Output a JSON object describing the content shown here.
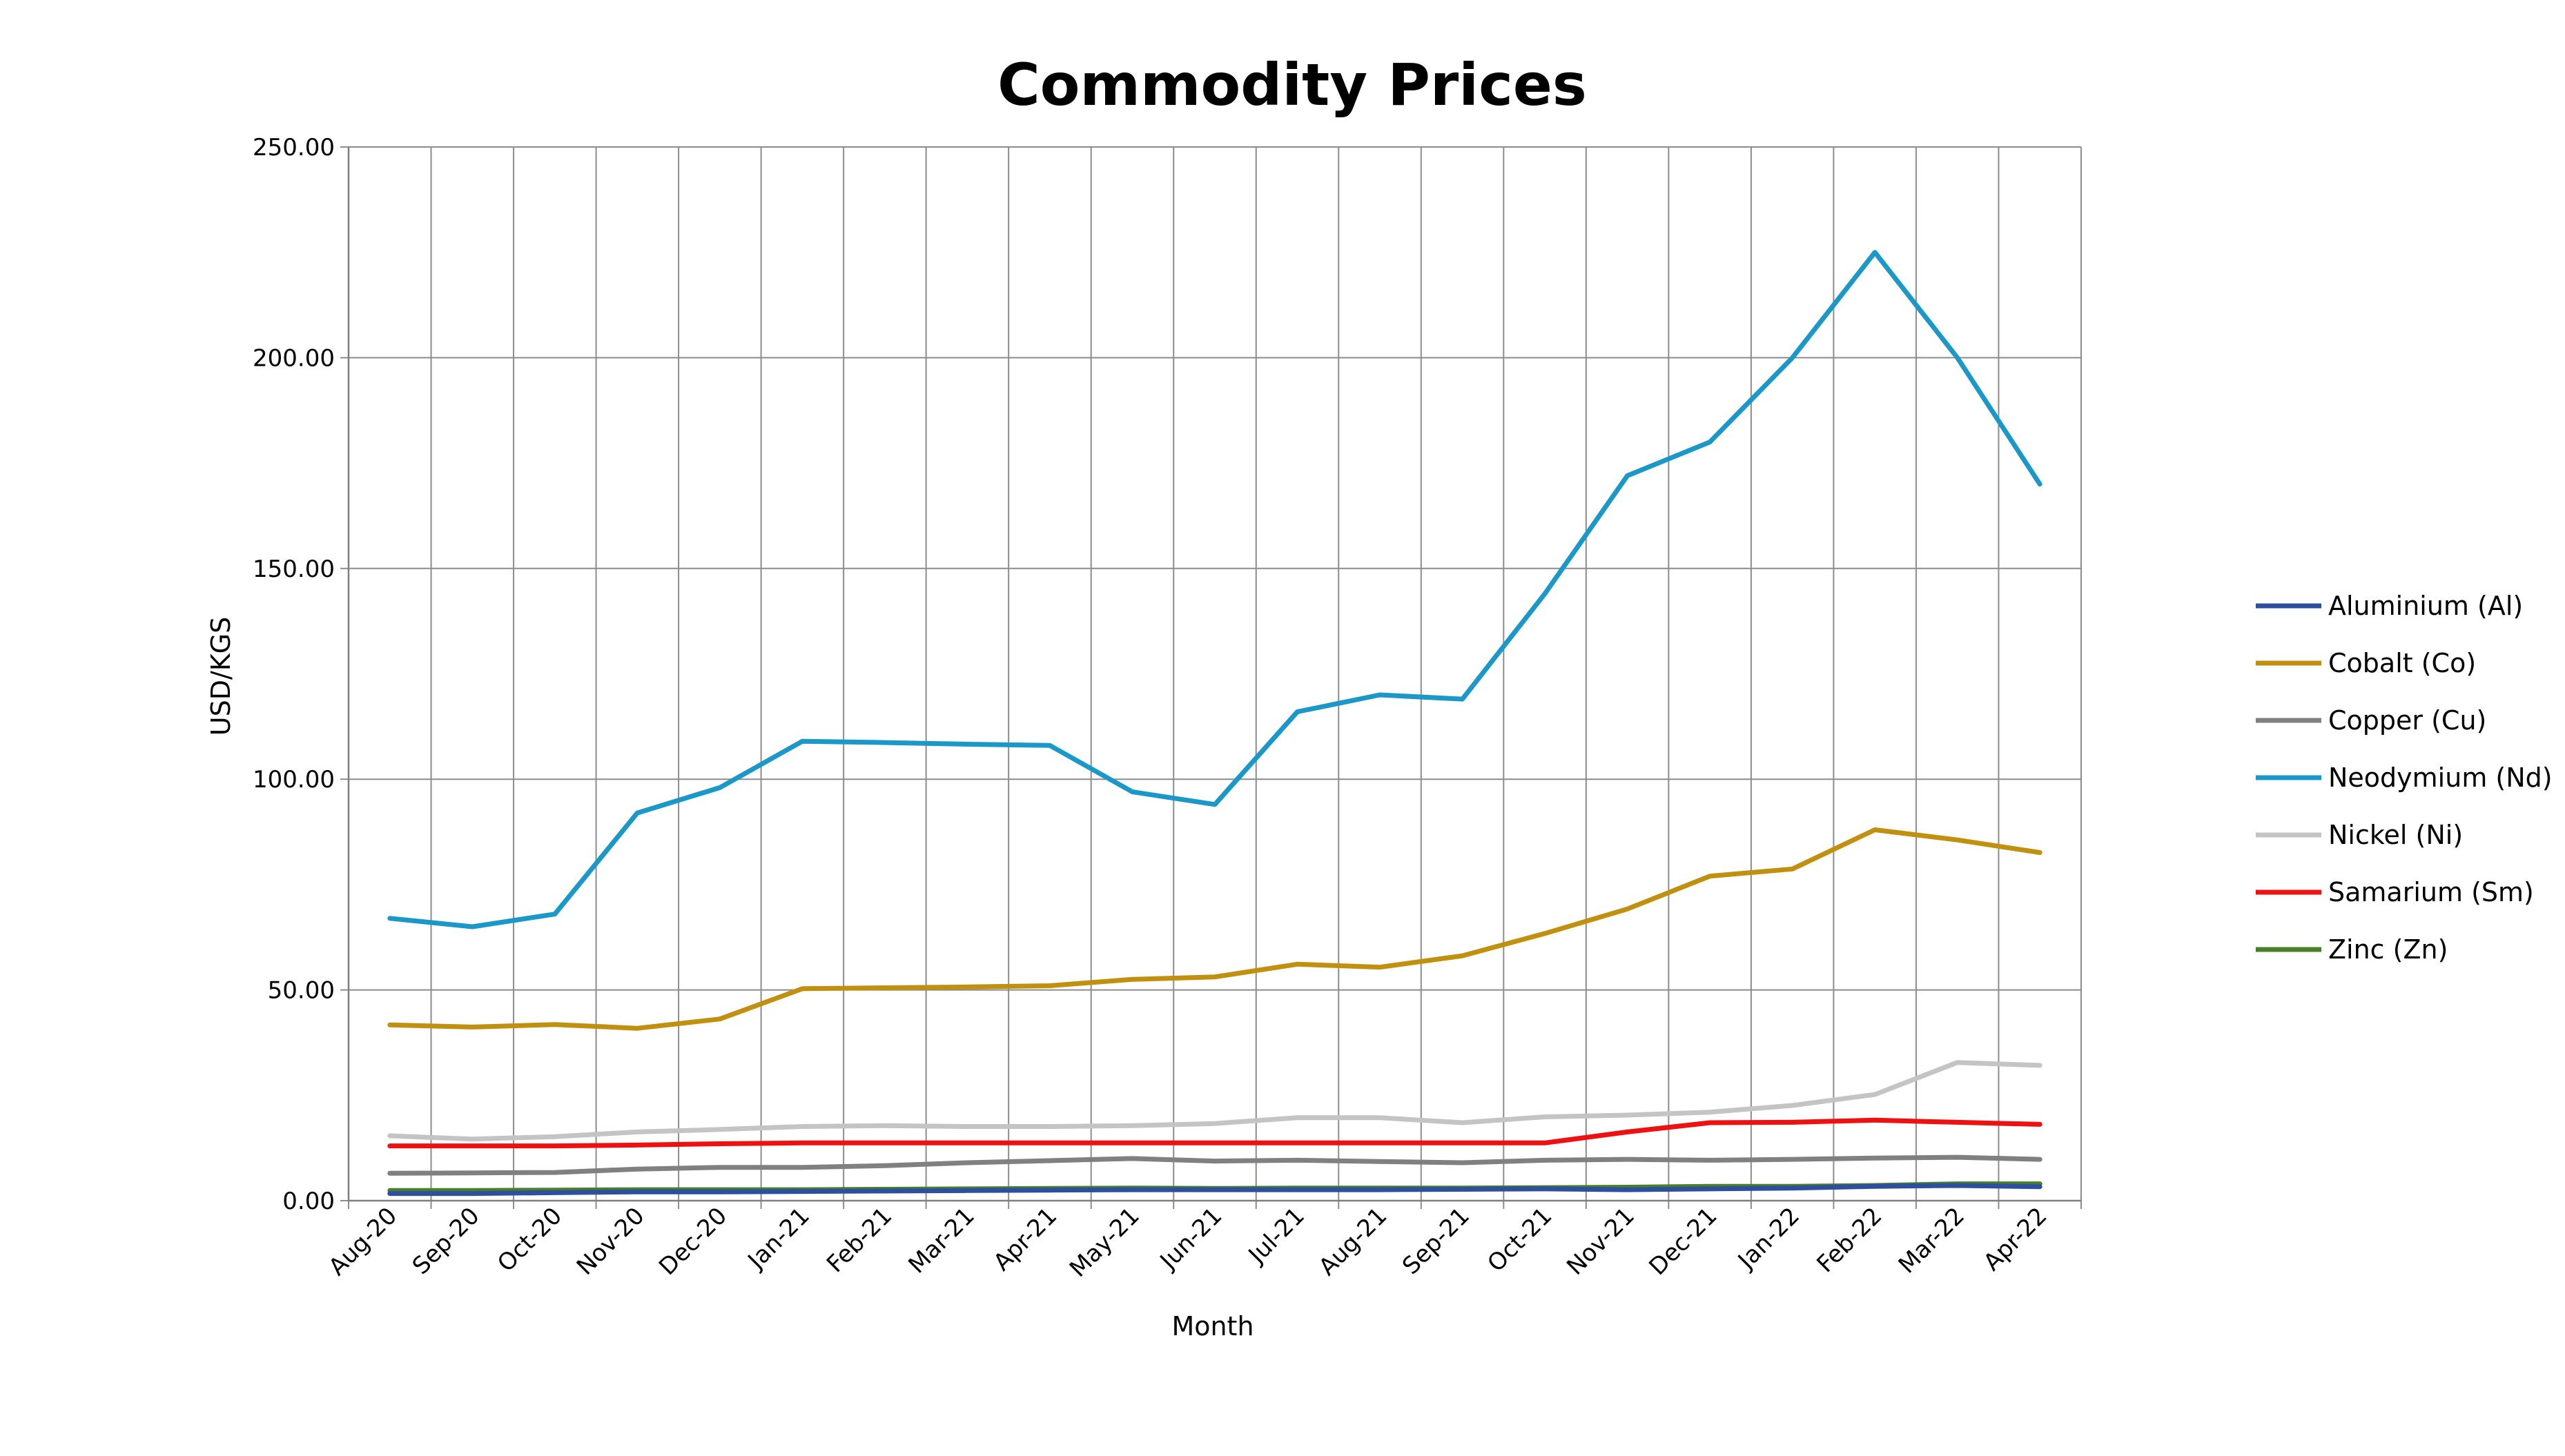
{
  "chart_data": {
    "type": "line",
    "title": "Commodity Prices",
    "xlabel": "Month",
    "ylabel": "USD/KGS",
    "ylim": [
      0,
      250
    ],
    "ytick_labels": [
      "0.00",
      "50.00",
      "100.00",
      "150.00",
      "200.00",
      "250.00"
    ],
    "grid": true,
    "legend_position": "right",
    "categories": [
      "Aug-20",
      "Sep-20",
      "Oct-20",
      "Nov-20",
      "Dec-20",
      "Jan-21",
      "Feb-21",
      "Mar-21",
      "Apr-21",
      "May-21",
      "Jun-21",
      "Jul-21",
      "Aug-21",
      "Sep-21",
      "Oct-21",
      "Nov-21",
      "Dec-21",
      "Jan-22",
      "Feb-22",
      "Mar-22",
      "Apr-22"
    ],
    "series": [
      {
        "name": "Aluminium (Al)",
        "color": "#2e4f9e",
        "values": [
          1.7,
          1.7,
          1.9,
          2.1,
          2.1,
          2.2,
          2.3,
          2.4,
          2.5,
          2.6,
          2.6,
          2.6,
          2.6,
          2.7,
          2.8,
          2.6,
          2.8,
          3.0,
          3.4,
          3.6,
          3.3
        ]
      },
      {
        "name": "Cobalt (Co)",
        "color": "#c09010",
        "values": [
          41.7,
          41.2,
          41.8,
          40.9,
          43.1,
          50.3,
          50.5,
          50.7,
          51.0,
          52.5,
          53.1,
          56.1,
          55.4,
          58.1,
          63.4,
          69.2,
          77.0,
          78.7,
          88.0,
          85.6,
          82.6
        ]
      },
      {
        "name": "Copper (Cu)",
        "color": "#808080",
        "values": [
          6.5,
          6.6,
          6.7,
          7.5,
          7.9,
          7.9,
          8.3,
          9.0,
          9.5,
          10.0,
          9.4,
          9.6,
          9.3,
          9.0,
          9.6,
          9.8,
          9.6,
          9.8,
          10.1,
          10.3,
          9.8
        ]
      },
      {
        "name": "Neodymium (Nd)",
        "color": "#1b98c8",
        "values": [
          67,
          65,
          68,
          92,
          98,
          109,
          108.7,
          108.3,
          108,
          97,
          94,
          116,
          120,
          119,
          144,
          172,
          180,
          200,
          225,
          200,
          170
        ]
      },
      {
        "name": "Nickel (Ni)",
        "color": "#c4c4c4",
        "values": [
          15.4,
          14.6,
          15.2,
          16.3,
          16.9,
          17.6,
          17.8,
          17.6,
          17.6,
          17.8,
          18.3,
          19.7,
          19.7,
          18.5,
          19.9,
          20.3,
          21.0,
          22.6,
          25.2,
          32.8,
          32.1
        ]
      },
      {
        "name": "Samarium (Sm)",
        "color": "#ee1111",
        "values": [
          13,
          13,
          13,
          13.2,
          13.5,
          13.7,
          13.7,
          13.7,
          13.7,
          13.7,
          13.7,
          13.7,
          13.7,
          13.7,
          13.7,
          16.3,
          18.5,
          18.6,
          19.1,
          18.6,
          18.1
        ]
      },
      {
        "name": "Zinc (Zn)",
        "color": "#4a7f2a",
        "values": [
          2.4,
          2.4,
          2.5,
          2.6,
          2.6,
          2.6,
          2.7,
          2.8,
          2.9,
          3.0,
          2.9,
          3.0,
          3.0,
          3.0,
          3.1,
          3.2,
          3.4,
          3.4,
          3.6,
          4.0,
          4.0
        ]
      }
    ]
  }
}
